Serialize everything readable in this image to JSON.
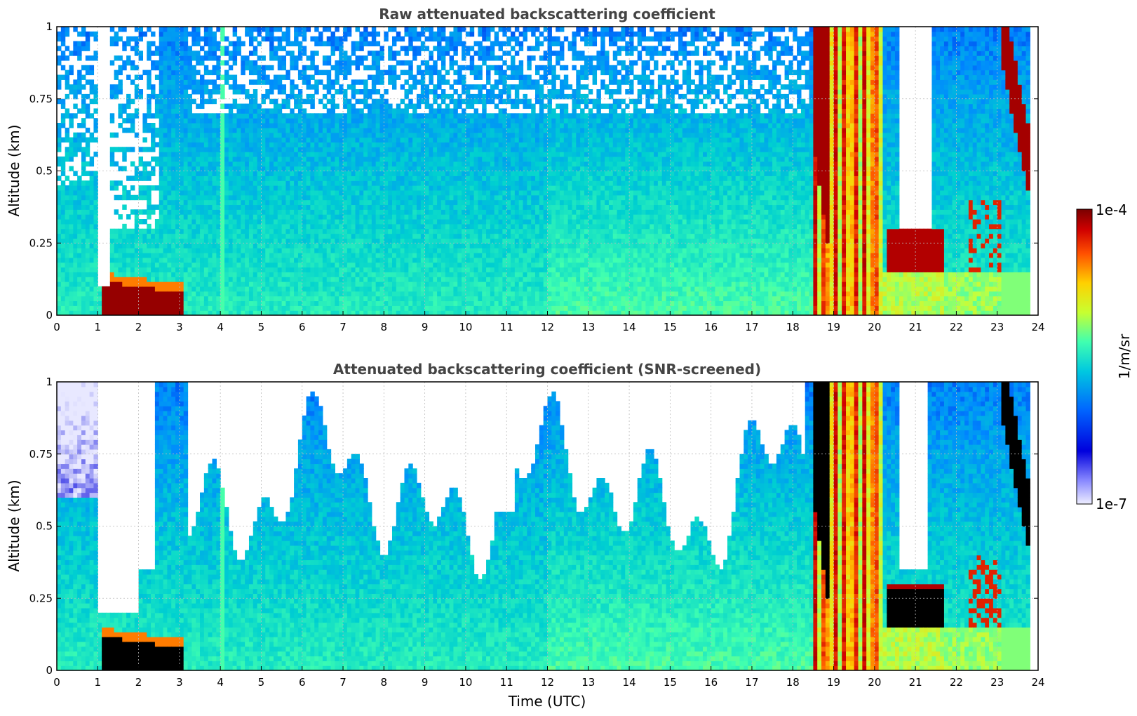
{
  "chart_data": [
    {
      "type": "heatmap",
      "title": "Raw attenuated backscattering coefficient",
      "ylabel": "Altitude (km)",
      "xlabel": "",
      "xlim": [
        0,
        24
      ],
      "ylim": [
        0,
        1
      ],
      "xticks": [
        "0",
        "1",
        "2",
        "3",
        "4",
        "5",
        "6",
        "7",
        "8",
        "9",
        "10",
        "11",
        "12",
        "13",
        "14",
        "15",
        "16",
        "17",
        "18",
        "19",
        "20",
        "21",
        "22",
        "23",
        "24"
      ],
      "yticks": [
        "0",
        "0.25",
        "0.5",
        "0.75",
        "1"
      ],
      "grid": true,
      "screened": false,
      "features": [
        {
          "time_start": 0.0,
          "time_end": 1.0,
          "note": "noisy sparse signal above 0.5 km"
        },
        {
          "time_start": 1.05,
          "time_end": 3.1,
          "alt_max": 0.12,
          "level": "1e-4",
          "note": "dense low layer"
        },
        {
          "time_start": 18.55,
          "time_end": 20.2,
          "alt_max": 1.0,
          "level": "high",
          "note": "precipitation / thick cloud"
        },
        {
          "time_start": 20.3,
          "time_end": 21.7,
          "alt_min": 0.15,
          "alt_max": 0.3,
          "level": "1e-4",
          "note": "low cloud layer"
        },
        {
          "time_start": 23.1,
          "time_end": 23.85,
          "alt_min": 0.45,
          "alt_max": 1.0,
          "level": "1e-4",
          "note": "descending layer"
        }
      ]
    },
    {
      "type": "heatmap",
      "title": "Attenuated backscattering coefficient (SNR-screened)",
      "ylabel": "Altitude (km)",
      "xlabel": "Time (UTC)",
      "xlim": [
        0,
        24
      ],
      "ylim": [
        0,
        1
      ],
      "xticks": [
        "0",
        "1",
        "2",
        "3",
        "4",
        "5",
        "6",
        "7",
        "8",
        "9",
        "10",
        "11",
        "12",
        "13",
        "14",
        "15",
        "16",
        "17",
        "18",
        "19",
        "20",
        "21",
        "22",
        "23",
        "24"
      ],
      "yticks": [
        "0",
        "0.25",
        "0.5",
        "0.75",
        "1"
      ],
      "grid": true,
      "screened": true,
      "features": [
        {
          "time_start": 1.05,
          "time_end": 3.1,
          "alt_max": 0.12,
          "level": "saturated",
          "note": "black saturated layer"
        },
        {
          "time_start": 20.3,
          "time_end": 21.7,
          "alt_min": 0.15,
          "alt_max": 0.3,
          "level": "saturated",
          "note": "black saturated layer"
        },
        {
          "time_start": 23.1,
          "time_end": 23.85,
          "alt_min": 0.45,
          "alt_max": 0.85,
          "level": "saturated",
          "note": "black saturated layer"
        }
      ]
    }
  ],
  "colorbar": {
    "label": "1/m/sr",
    "max_label": "1e-4",
    "min_label": "1e-7",
    "colormap": "jet",
    "colors": [
      "#e8e8ff",
      "#0000dd",
      "#0088ff",
      "#00d0d0",
      "#40ffb0",
      "#c0ff40",
      "#ffd000",
      "#ff6000",
      "#d00000",
      "#800000"
    ]
  }
}
